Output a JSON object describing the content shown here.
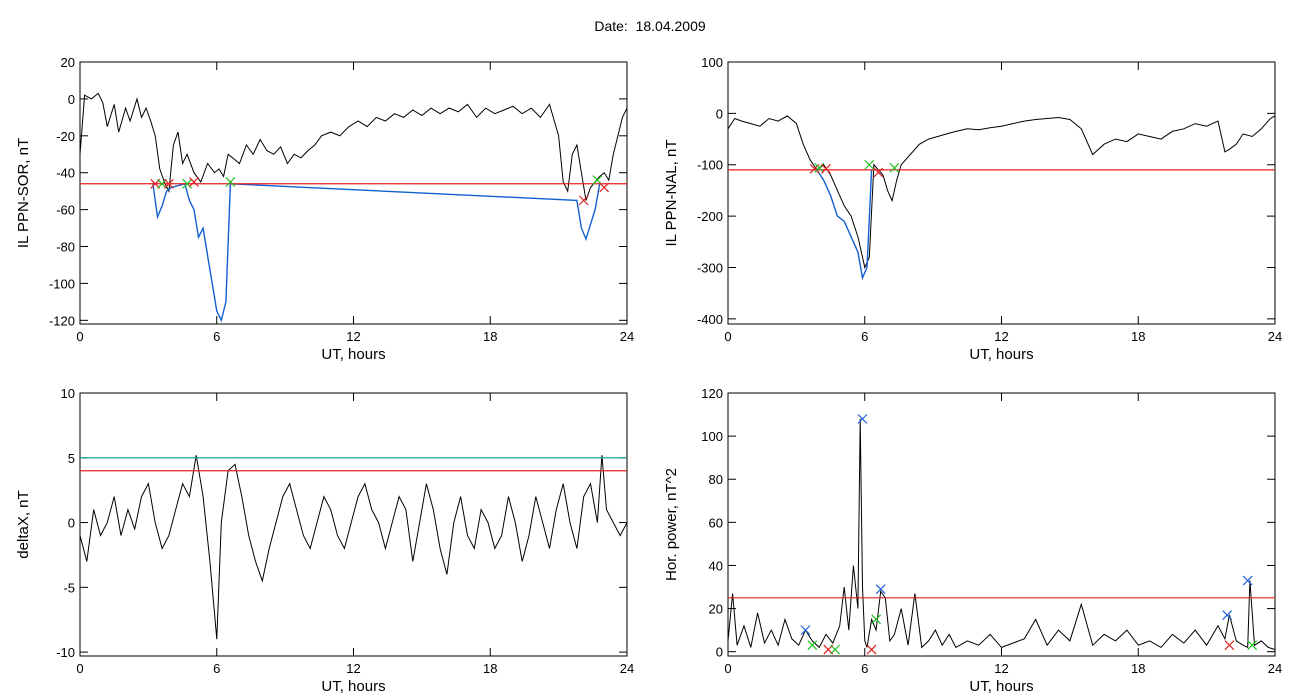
{
  "header": {
    "date_label": "Date:",
    "date_value": "18.04.2009"
  },
  "colors": {
    "trace": "#000000",
    "event": "#1060d0",
    "threshold": "#e02020",
    "threshold2": "#20a0a0",
    "cross_red": "#e02020",
    "cross_green": "#20c020",
    "cross_blue": "#2060e0"
  },
  "chart_data": [
    {
      "id": "sor",
      "type": "line",
      "xlabel": "UT, hours",
      "ylabel": "IL PPN-SOR, nT",
      "xlim": [
        0,
        24
      ],
      "ylim": [
        -122,
        20
      ],
      "xticks": [
        0,
        6,
        12,
        18,
        24
      ],
      "yticks": [
        20,
        0,
        -20,
        -40,
        -60,
        -80,
        -100,
        -120
      ],
      "thresholds": [
        {
          "y": -46,
          "color": "threshold"
        }
      ],
      "series": [
        {
          "color": "trace",
          "x": [
            0,
            0.2,
            0.5,
            0.8,
            1.0,
            1.2,
            1.5,
            1.7,
            2.0,
            2.2,
            2.5,
            2.7,
            2.9,
            3.1,
            3.3,
            3.5,
            3.7,
            3.9,
            4.1,
            4.3,
            4.5,
            4.7,
            5.0,
            5.3,
            5.6,
            5.9,
            6.1,
            6.3,
            6.5,
            6.7,
            7.0,
            7.3,
            7.6,
            7.9,
            8.2,
            8.5,
            8.8,
            9.1,
            9.4,
            9.7,
            10.0,
            10.3,
            10.6,
            11.0,
            11.4,
            11.8,
            12.2,
            12.6,
            13.0,
            13.4,
            13.8,
            14.2,
            14.6,
            15.0,
            15.4,
            15.8,
            16.2,
            16.6,
            17.0,
            17.4,
            17.8,
            18.2,
            18.6,
            19.0,
            19.4,
            19.8,
            20.2,
            20.6,
            21.0,
            21.2,
            21.4,
            21.6,
            21.8,
            22.0,
            22.2,
            22.4,
            22.6,
            22.8,
            23.0,
            23.2,
            23.4,
            23.6,
            23.8,
            24.0
          ],
          "y": [
            -30,
            2,
            0,
            3,
            -2,
            -15,
            -3,
            -18,
            -5,
            -12,
            0,
            -10,
            -5,
            -12,
            -20,
            -38,
            -45,
            -50,
            -25,
            -18,
            -35,
            -30,
            -40,
            -45,
            -35,
            -40,
            -38,
            -42,
            -30,
            -32,
            -35,
            -25,
            -30,
            -22,
            -28,
            -30,
            -26,
            -35,
            -30,
            -32,
            -28,
            -25,
            -20,
            -18,
            -20,
            -15,
            -12,
            -15,
            -10,
            -12,
            -8,
            -10,
            -6,
            -9,
            -5,
            -8,
            -5,
            -7,
            -3,
            -10,
            -5,
            -8,
            -6,
            -4,
            -8,
            -5,
            -10,
            -3,
            -20,
            -45,
            -50,
            -30,
            -25,
            -40,
            -55,
            -48,
            -45,
            -42,
            -40,
            -44,
            -30,
            -20,
            -10,
            -5
          ]
        },
        {
          "color": "event",
          "x": [
            3.2,
            3.4,
            3.6,
            3.8,
            4.0,
            4.6,
            4.8,
            5.0,
            5.2,
            5.4,
            5.6,
            5.8,
            6.0,
            6.2,
            6.4,
            6.6,
            21.8,
            22.0,
            22.2,
            22.4,
            22.6,
            22.8
          ],
          "y": [
            -46,
            -64,
            -58,
            -50,
            -48,
            -46,
            -55,
            -60,
            -75,
            -70,
            -85,
            -100,
            -115,
            -120,
            -110,
            -46,
            -55,
            -70,
            -76,
            -68,
            -60,
            -46
          ]
        }
      ],
      "markers": [
        {
          "x": 3.3,
          "y": -46,
          "color": "cross_red"
        },
        {
          "x": 3.6,
          "y": -46,
          "color": "cross_green"
        },
        {
          "x": 3.9,
          "y": -46,
          "color": "cross_red"
        },
        {
          "x": 4.7,
          "y": -46,
          "color": "cross_green"
        },
        {
          "x": 5.0,
          "y": -45,
          "color": "cross_red"
        },
        {
          "x": 6.6,
          "y": -45,
          "color": "cross_green"
        },
        {
          "x": 22.1,
          "y": -55,
          "color": "cross_red"
        },
        {
          "x": 22.7,
          "y": -44,
          "color": "cross_green"
        },
        {
          "x": 23.0,
          "y": -48,
          "color": "cross_red"
        }
      ]
    },
    {
      "id": "nal",
      "type": "line",
      "xlabel": "UT, hours",
      "ylabel": "IL PPN-NAL, nT",
      "xlim": [
        0,
        24
      ],
      "ylim": [
        -410,
        100
      ],
      "xticks": [
        0,
        6,
        12,
        18,
        24
      ],
      "yticks": [
        100,
        0,
        -100,
        -200,
        -300,
        -400
      ],
      "thresholds": [
        {
          "y": -110,
          "color": "threshold"
        }
      ],
      "series": [
        {
          "color": "trace",
          "x": [
            0,
            0.3,
            0.6,
            1.0,
            1.4,
            1.8,
            2.2,
            2.6,
            3.0,
            3.3,
            3.6,
            3.9,
            4.2,
            4.5,
            4.8,
            5.1,
            5.4,
            5.7,
            6.0,
            6.2,
            6.4,
            6.6,
            6.8,
            7.0,
            7.2,
            7.4,
            7.6,
            8.0,
            8.4,
            8.8,
            9.2,
            9.6,
            10.0,
            10.5,
            11.0,
            11.5,
            12.0,
            12.5,
            13.0,
            13.5,
            14.0,
            14.5,
            15.0,
            15.5,
            16.0,
            16.5,
            17.0,
            17.5,
            18.0,
            18.5,
            19.0,
            19.5,
            20.0,
            20.5,
            21.0,
            21.5,
            21.8,
            22.0,
            22.3,
            22.6,
            23.0,
            23.4,
            23.8,
            24.0
          ],
          "y": [
            -30,
            -10,
            -15,
            -20,
            -25,
            -10,
            -15,
            -5,
            -20,
            -60,
            -90,
            -110,
            -100,
            -120,
            -150,
            -180,
            -200,
            -240,
            -300,
            -280,
            -100,
            -110,
            -120,
            -150,
            -170,
            -130,
            -100,
            -80,
            -60,
            -50,
            -45,
            -40,
            -35,
            -30,
            -32,
            -28,
            -25,
            -20,
            -15,
            -12,
            -10,
            -8,
            -12,
            -30,
            -80,
            -60,
            -50,
            -55,
            -40,
            -45,
            -50,
            -35,
            -30,
            -20,
            -25,
            -15,
            -75,
            -70,
            -60,
            -40,
            -45,
            -30,
            -10,
            -5
          ]
        },
        {
          "color": "event",
          "x": [
            3.9,
            4.2,
            4.5,
            4.8,
            5.1,
            5.4,
            5.7,
            5.9,
            6.1,
            6.3
          ],
          "y": [
            -110,
            -130,
            -160,
            -200,
            -210,
            -240,
            -270,
            -320,
            -300,
            -110
          ]
        }
      ],
      "markers": [
        {
          "x": 3.8,
          "y": -108,
          "color": "cross_red"
        },
        {
          "x": 4.0,
          "y": -106,
          "color": "cross_green"
        },
        {
          "x": 4.3,
          "y": -108,
          "color": "cross_red"
        },
        {
          "x": 6.2,
          "y": -100,
          "color": "cross_green"
        },
        {
          "x": 6.6,
          "y": -115,
          "color": "cross_red"
        },
        {
          "x": 7.3,
          "y": -106,
          "color": "cross_green"
        }
      ]
    },
    {
      "id": "deltax",
      "type": "line",
      "xlabel": "UT, hours",
      "ylabel": "deltaX, nT",
      "xlim": [
        0,
        24
      ],
      "ylim": [
        -10.3,
        10
      ],
      "xticks": [
        0,
        6,
        12,
        18,
        24
      ],
      "yticks": [
        10,
        5,
        0,
        -5,
        -10
      ],
      "thresholds": [
        {
          "y": 5,
          "color": "threshold2"
        },
        {
          "y": 4,
          "color": "threshold"
        }
      ],
      "series": [
        {
          "color": "trace",
          "x": [
            0,
            0.3,
            0.6,
            0.9,
            1.2,
            1.5,
            1.8,
            2.1,
            2.4,
            2.7,
            3.0,
            3.3,
            3.6,
            3.9,
            4.2,
            4.5,
            4.8,
            5.1,
            5.4,
            5.7,
            5.9,
            6.0,
            6.2,
            6.5,
            6.8,
            7.1,
            7.4,
            7.7,
            8.0,
            8.3,
            8.6,
            8.9,
            9.2,
            9.5,
            9.8,
            10.1,
            10.4,
            10.7,
            11.0,
            11.3,
            11.6,
            11.9,
            12.2,
            12.5,
            12.8,
            13.1,
            13.4,
            13.7,
            14.0,
            14.3,
            14.6,
            14.9,
            15.2,
            15.5,
            15.8,
            16.1,
            16.4,
            16.7,
            17.0,
            17.3,
            17.6,
            17.9,
            18.2,
            18.5,
            18.8,
            19.1,
            19.4,
            19.7,
            20.0,
            20.3,
            20.6,
            20.9,
            21.2,
            21.5,
            21.8,
            22.1,
            22.4,
            22.7,
            22.9,
            23.1,
            23.4,
            23.7,
            24.0
          ],
          "y": [
            -1,
            -3,
            1,
            -1,
            0,
            2,
            -1,
            1,
            -0.5,
            2,
            3,
            0,
            -2,
            -1,
            1,
            3,
            2,
            5.2,
            2,
            -3,
            -7,
            -9,
            0,
            4,
            4.5,
            2,
            -1,
            -3,
            -4.5,
            -2,
            0,
            2,
            3,
            1,
            -1,
            -2,
            0,
            2,
            1,
            -1,
            -2,
            0,
            2,
            3,
            1,
            0,
            -2,
            0,
            2,
            1,
            -3,
            0,
            3,
            1,
            -2,
            -4,
            0,
            2,
            -1,
            -2,
            1,
            0,
            -2,
            -1,
            2,
            0,
            -3,
            -1,
            2,
            0,
            -2,
            1,
            3,
            0,
            -2,
            2,
            3,
            0,
            5.2,
            1,
            0,
            -1,
            0
          ]
        }
      ],
      "markers": []
    },
    {
      "id": "power",
      "type": "line",
      "xlabel": "UT, hours",
      "ylabel": "Hor. power, nT^2",
      "xlim": [
        0,
        24
      ],
      "ylim": [
        -2,
        120
      ],
      "xticks": [
        0,
        6,
        12,
        18,
        24
      ],
      "yticks": [
        120,
        100,
        80,
        60,
        40,
        20,
        0
      ],
      "thresholds": [
        {
          "y": 25,
          "color": "threshold"
        }
      ],
      "series": [
        {
          "color": "trace",
          "x": [
            0,
            0.2,
            0.4,
            0.7,
            1.0,
            1.3,
            1.6,
            1.9,
            2.2,
            2.5,
            2.8,
            3.1,
            3.4,
            3.7,
            4.0,
            4.3,
            4.6,
            4.9,
            5.1,
            5.3,
            5.5,
            5.7,
            5.8,
            5.9,
            6.0,
            6.1,
            6.3,
            6.5,
            6.7,
            6.9,
            7.1,
            7.3,
            7.6,
            7.9,
            8.2,
            8.5,
            8.8,
            9.1,
            9.4,
            9.7,
            10.0,
            10.5,
            11.0,
            11.5,
            12.0,
            12.5,
            13.0,
            13.5,
            14.0,
            14.5,
            15.0,
            15.5,
            16.0,
            16.5,
            17.0,
            17.5,
            18.0,
            18.5,
            19.0,
            19.5,
            20.0,
            20.5,
            21.0,
            21.5,
            21.8,
            22.0,
            22.3,
            22.6,
            22.8,
            22.9,
            23.1,
            23.4,
            23.7,
            24.0
          ],
          "y": [
            5,
            27,
            3,
            12,
            2,
            18,
            4,
            10,
            3,
            15,
            6,
            3,
            10,
            5,
            2,
            8,
            4,
            12,
            30,
            10,
            40,
            20,
            108,
            30,
            5,
            2,
            15,
            10,
            28,
            25,
            5,
            8,
            20,
            3,
            27,
            2,
            5,
            10,
            3,
            8,
            2,
            5,
            3,
            8,
            2,
            4,
            6,
            15,
            3,
            10,
            5,
            22,
            3,
            8,
            5,
            10,
            3,
            5,
            2,
            8,
            4,
            10,
            3,
            12,
            6,
            17,
            5,
            3,
            2,
            33,
            3,
            5,
            2,
            1
          ]
        }
      ],
      "markers": [
        {
          "x": 3.4,
          "y": 10,
          "color": "cross_blue"
        },
        {
          "x": 3.7,
          "y": 3,
          "color": "cross_green"
        },
        {
          "x": 4.4,
          "y": 1,
          "color": "cross_red"
        },
        {
          "x": 4.7,
          "y": 1,
          "color": "cross_green"
        },
        {
          "x": 5.9,
          "y": 108,
          "color": "cross_blue"
        },
        {
          "x": 6.3,
          "y": 1,
          "color": "cross_red"
        },
        {
          "x": 6.5,
          "y": 15,
          "color": "cross_green"
        },
        {
          "x": 6.7,
          "y": 29,
          "color": "cross_blue"
        },
        {
          "x": 21.9,
          "y": 17,
          "color": "cross_blue"
        },
        {
          "x": 22.0,
          "y": 3,
          "color": "cross_red"
        },
        {
          "x": 22.8,
          "y": 33,
          "color": "cross_blue"
        },
        {
          "x": 23.0,
          "y": 3,
          "color": "cross_green"
        }
      ]
    }
  ]
}
